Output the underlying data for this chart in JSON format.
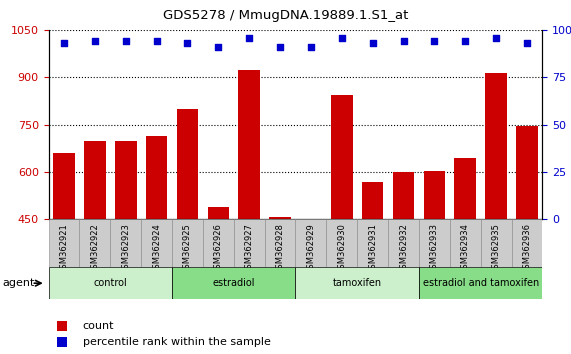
{
  "title": "GDS5278 / MmugDNA.19889.1.S1_at",
  "samples": [
    "GSM362921",
    "GSM362922",
    "GSM362923",
    "GSM362924",
    "GSM362925",
    "GSM362926",
    "GSM362927",
    "GSM362928",
    "GSM362929",
    "GSM362930",
    "GSM362931",
    "GSM362932",
    "GSM362933",
    "GSM362934",
    "GSM362935",
    "GSM362936"
  ],
  "counts": [
    660,
    700,
    698,
    715,
    800,
    490,
    925,
    457,
    453,
    845,
    570,
    600,
    605,
    645,
    915,
    745
  ],
  "percentiles": [
    93,
    94,
    94,
    94,
    93,
    91,
    96,
    91,
    91,
    96,
    93,
    94,
    94,
    94,
    96,
    93
  ],
  "ylim_left": [
    450,
    1050
  ],
  "ylim_right": [
    0,
    100
  ],
  "yticks_left": [
    450,
    600,
    750,
    900,
    1050
  ],
  "yticks_right": [
    0,
    25,
    50,
    75,
    100
  ],
  "groups": [
    {
      "label": "control",
      "start": 0,
      "end": 4,
      "color": "#ccf0cc"
    },
    {
      "label": "estradiol",
      "start": 4,
      "end": 8,
      "color": "#88dd88"
    },
    {
      "label": "tamoxifen",
      "start": 8,
      "end": 12,
      "color": "#ccf0cc"
    },
    {
      "label": "estradiol and tamoxifen",
      "start": 12,
      "end": 16,
      "color": "#88dd88"
    }
  ],
  "bar_color": "#cc0000",
  "dot_color": "#0000cc",
  "background_color": "#ffffff",
  "plot_bg_color": "#ffffff",
  "grid_color": "#000000",
  "tick_bg_color": "#cccccc",
  "agent_label": "agent",
  "legend_count": "count",
  "legend_percentile": "percentile rank within the sample"
}
